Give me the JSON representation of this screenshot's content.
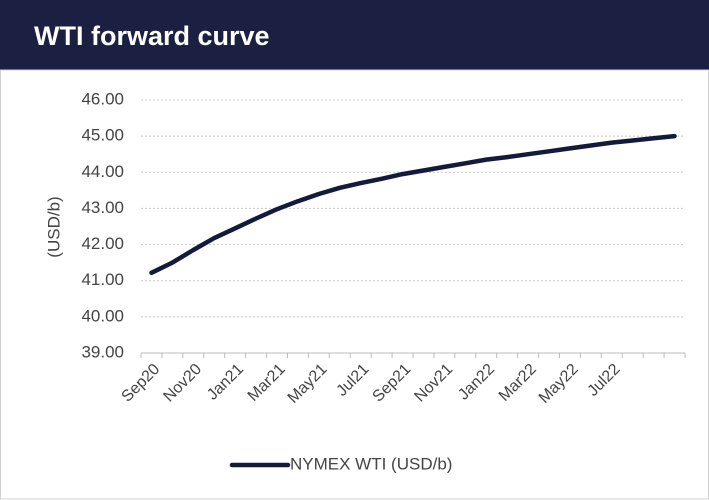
{
  "chart_data": {
    "type": "line",
    "title": "WTI forward curve",
    "y_label": "(USD/b)",
    "categories": [
      "Sep20",
      null,
      "Nov20",
      null,
      "Jan21",
      null,
      "Mar21",
      null,
      "May21",
      null,
      "Jul21",
      null,
      "Sep21",
      null,
      "Nov21",
      null,
      "Jan22",
      null,
      "Mar22",
      null,
      "May22",
      null,
      "Jul22",
      null,
      null,
      null
    ],
    "series": [
      {
        "name": "NYMEX WTI (USD/b)",
        "color": "#141a3c",
        "values": [
          41.22,
          41.5,
          41.85,
          42.18,
          42.45,
          42.72,
          42.98,
          43.2,
          43.4,
          43.57,
          43.7,
          43.82,
          43.95,
          44.05,
          44.15,
          44.25,
          44.35,
          44.42,
          44.5,
          44.58,
          44.66,
          44.74,
          44.82,
          44.88,
          44.94,
          45.0
        ]
      }
    ],
    "ylim": [
      39,
      46
    ],
    "yticks": [
      {
        "value": 39,
        "label": "39.00"
      },
      {
        "value": 40,
        "label": "40.00"
      },
      {
        "value": 41,
        "label": "41.00"
      },
      {
        "value": 42,
        "label": "42.00"
      },
      {
        "value": 43,
        "label": "43.00"
      },
      {
        "value": 44,
        "label": "44.00"
      },
      {
        "value": 45,
        "label": "45.00"
      },
      {
        "value": 46,
        "label": "46.00"
      }
    ],
    "grid": true,
    "legend": "bottom"
  }
}
